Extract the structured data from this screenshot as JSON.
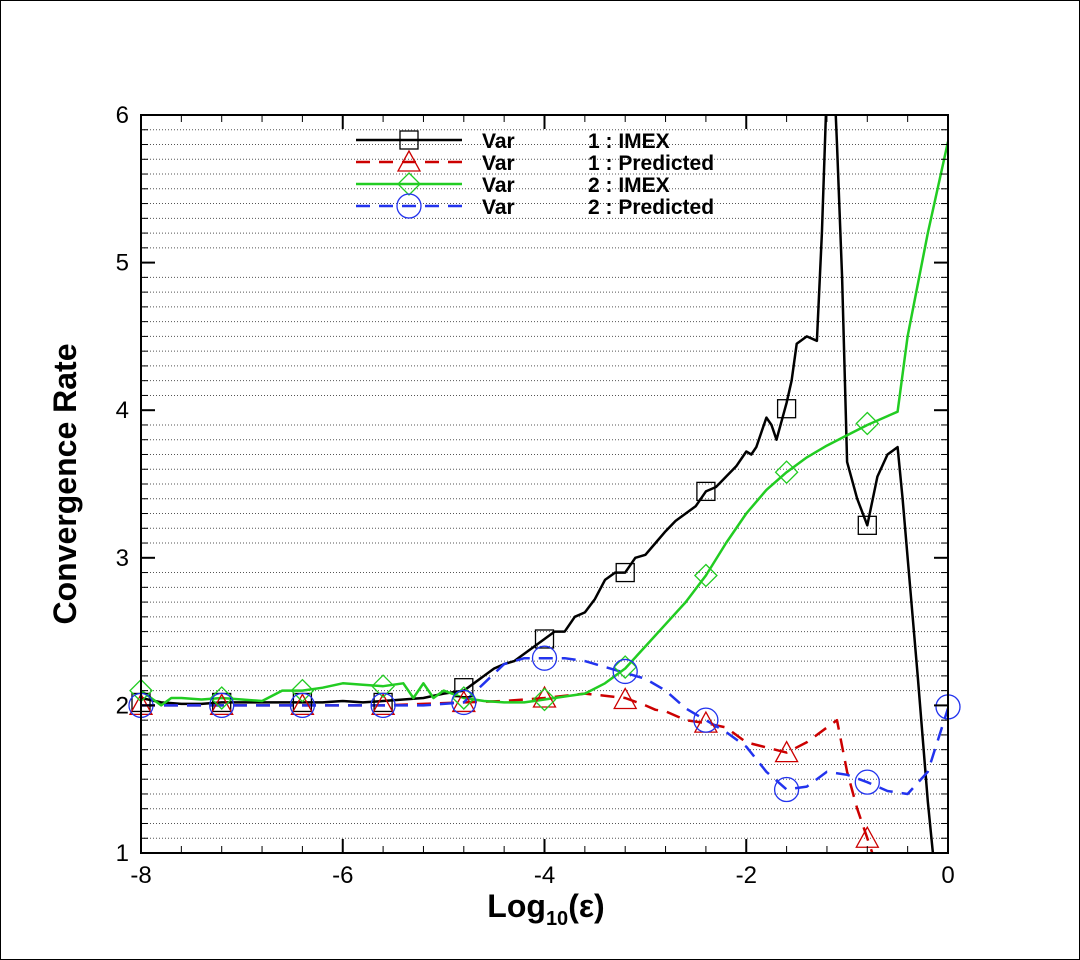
{
  "chart_data": {
    "type": "line",
    "xlabel": "Log",
    "xlabel_sub": "10",
    "xlabel_tail": "(ε)",
    "ylabel": "Convergence Rate",
    "xlim": [
      -8,
      0
    ],
    "ylim": [
      1,
      6
    ],
    "x_ticks": [
      -8,
      -6,
      -4,
      -2,
      0
    ],
    "y_ticks": [
      1,
      2,
      3,
      4,
      5,
      6
    ],
    "x_tick_labels": [
      "-8",
      "-6",
      "-4",
      "-2",
      "0"
    ],
    "y_tick_labels": [
      "1",
      "2",
      "3",
      "4",
      "5",
      "6"
    ],
    "grid": "horizontal dotted",
    "legend_position": "top-center",
    "series": [
      {
        "name": "Var 1 : IMEX",
        "legend_var": "Var",
        "legend_label": "1 : IMEX",
        "color": "#000000",
        "dash": "solid",
        "marker": "square",
        "x": [
          -8.0,
          -7.8,
          -7.6,
          -7.4,
          -7.2,
          -7.0,
          -6.8,
          -6.6,
          -6.4,
          -6.2,
          -6.0,
          -5.8,
          -5.6,
          -5.4,
          -5.2,
          -5.0,
          -4.8,
          -4.7,
          -4.6,
          -4.5,
          -4.4,
          -4.3,
          -4.2,
          -4.1,
          -4.0,
          -3.9,
          -3.8,
          -3.7,
          -3.6,
          -3.5,
          -3.4,
          -3.3,
          -3.2,
          -3.1,
          -3.0,
          -2.9,
          -2.8,
          -2.7,
          -2.6,
          -2.5,
          -2.4,
          -2.3,
          -2.2,
          -2.1,
          -2.0,
          -1.95,
          -1.9,
          -1.8,
          -1.75,
          -1.7,
          -1.6,
          -1.55,
          -1.5,
          -1.4,
          -1.3,
          -1.25,
          -1.2,
          -1.15,
          -1.1,
          -1.05,
          -1.0,
          -0.9,
          -0.8,
          -0.7,
          -0.6,
          -0.5,
          -0.45,
          -0.3,
          -0.2,
          -0.15
        ],
        "y": [
          2.05,
          2.02,
          2.01,
          2.01,
          2.02,
          2.02,
          2.02,
          2.02,
          2.02,
          2.02,
          2.03,
          2.02,
          2.03,
          2.04,
          2.05,
          2.08,
          2.1,
          2.15,
          2.2,
          2.25,
          2.28,
          2.3,
          2.35,
          2.4,
          2.45,
          2.5,
          2.5,
          2.6,
          2.63,
          2.72,
          2.85,
          2.9,
          2.9,
          3.0,
          3.02,
          3.1,
          3.18,
          3.25,
          3.3,
          3.35,
          3.45,
          3.48,
          3.55,
          3.62,
          3.72,
          3.7,
          3.75,
          3.95,
          3.9,
          3.8,
          4.05,
          4.2,
          4.45,
          4.5,
          4.47,
          5.2,
          6.2,
          6.6,
          5.8,
          4.9,
          3.65,
          3.4,
          3.22,
          3.55,
          3.7,
          3.75,
          3.4,
          2.2,
          1.35,
          1.0
        ],
        "marker_x": [
          -8.0,
          -7.2,
          -6.4,
          -5.6,
          -4.8,
          -4.0,
          -3.2,
          -2.4,
          -1.6,
          -0.8
        ],
        "marker_y": [
          2.02,
          2.02,
          2.02,
          2.02,
          2.12,
          2.45,
          2.9,
          3.45,
          4.01,
          3.22
        ]
      },
      {
        "name": "Var 1 : Predicted",
        "legend_var": "Var",
        "legend_label": "1 : Predicted",
        "color": "#cc0000",
        "dash": "dashed",
        "marker": "triangle",
        "x": [
          -8.0,
          -7.6,
          -7.2,
          -6.8,
          -6.4,
          -6.0,
          -5.6,
          -5.2,
          -4.8,
          -4.4,
          -4.0,
          -3.6,
          -3.2,
          -3.0,
          -2.9,
          -2.8,
          -2.6,
          -2.4,
          -2.2,
          -2.0,
          -1.6,
          -1.4,
          -1.2,
          -1.1,
          -1.0,
          -0.9,
          -0.8,
          -0.75
        ],
        "y": [
          2.0,
          2.0,
          2.0,
          2.0,
          2.0,
          2.0,
          2.0,
          2.01,
          2.02,
          2.03,
          2.05,
          2.08,
          2.05,
          2.0,
          1.97,
          1.96,
          1.9,
          1.88,
          1.85,
          1.75,
          1.68,
          1.75,
          1.85,
          1.9,
          1.55,
          1.3,
          1.1,
          1.0
        ],
        "marker_x": [
          -8.0,
          -7.2,
          -6.4,
          -5.6,
          -4.8,
          -4.0,
          -3.2,
          -2.4,
          -1.6,
          -0.8
        ],
        "marker_y": [
          2.0,
          2.0,
          2.0,
          2.0,
          2.02,
          2.05,
          2.04,
          1.88,
          1.68,
          1.1
        ]
      },
      {
        "name": "Var 2 : IMEX",
        "legend_var": "Var",
        "legend_label": "2 : IMEX",
        "color": "#22cc22",
        "dash": "solid",
        "marker": "diamond",
        "x": [
          -8.0,
          -7.8,
          -7.7,
          -7.6,
          -7.4,
          -7.2,
          -7.0,
          -6.8,
          -6.6,
          -6.4,
          -6.2,
          -6.0,
          -5.8,
          -5.6,
          -5.4,
          -5.3,
          -5.2,
          -5.1,
          -5.0,
          -4.8,
          -4.6,
          -4.4,
          -4.2,
          -4.0,
          -3.8,
          -3.6,
          -3.4,
          -3.2,
          -3.0,
          -2.8,
          -2.6,
          -2.4,
          -2.2,
          -2.0,
          -1.8,
          -1.6,
          -1.4,
          -1.2,
          -1.0,
          -0.8,
          -0.6,
          -0.5,
          -0.4,
          -0.2,
          0.0
        ],
        "y": [
          2.1,
          2.0,
          2.05,
          2.05,
          2.04,
          2.05,
          2.04,
          2.03,
          2.1,
          2.1,
          2.12,
          2.15,
          2.14,
          2.13,
          2.15,
          2.05,
          2.15,
          2.05,
          2.1,
          2.05,
          2.03,
          2.02,
          2.02,
          2.04,
          2.06,
          2.08,
          2.15,
          2.25,
          2.4,
          2.55,
          2.7,
          2.88,
          3.1,
          3.3,
          3.46,
          3.58,
          3.68,
          3.76,
          3.83,
          3.9,
          3.96,
          3.99,
          4.5,
          5.2,
          5.82
        ],
        "marker_x": [
          -8.0,
          -7.2,
          -6.4,
          -5.6,
          -4.8,
          -4.0,
          -3.2,
          -2.4,
          -1.6,
          -0.8
        ],
        "marker_y": [
          2.1,
          2.05,
          2.1,
          2.13,
          2.05,
          2.04,
          2.26,
          2.88,
          3.58,
          3.91
        ]
      },
      {
        "name": "Var 2 : Predicted",
        "legend_var": "Var",
        "legend_label": "2 : Predicted",
        "color": "#2233ee",
        "dash": "dashed",
        "marker": "circle",
        "x": [
          -8.0,
          -7.6,
          -7.2,
          -6.8,
          -6.4,
          -6.0,
          -5.6,
          -5.2,
          -4.8,
          -4.6,
          -4.4,
          -4.2,
          -4.0,
          -3.8,
          -3.6,
          -3.4,
          -3.2,
          -3.0,
          -2.8,
          -2.6,
          -2.4,
          -2.2,
          -2.0,
          -1.8,
          -1.6,
          -1.4,
          -1.2,
          -1.0,
          -0.8,
          -0.6,
          -0.4,
          -0.2,
          0.0
        ],
        "y": [
          2.0,
          2.0,
          2.0,
          2.0,
          2.0,
          2.0,
          2.0,
          2.0,
          2.02,
          2.15,
          2.28,
          2.32,
          2.32,
          2.32,
          2.3,
          2.26,
          2.22,
          2.18,
          2.1,
          1.98,
          1.9,
          1.82,
          1.72,
          1.55,
          1.43,
          1.45,
          1.55,
          1.53,
          1.48,
          1.42,
          1.4,
          1.55,
          1.98
        ],
        "marker_x": [
          -8.0,
          -7.2,
          -6.4,
          -5.6,
          -4.8,
          -4.0,
          -3.2,
          -2.4,
          -1.6,
          -0.8,
          0.0
        ],
        "marker_y": [
          2.0,
          2.0,
          2.0,
          2.0,
          2.02,
          2.32,
          2.23,
          1.9,
          1.43,
          1.48,
          1.99
        ]
      }
    ]
  }
}
